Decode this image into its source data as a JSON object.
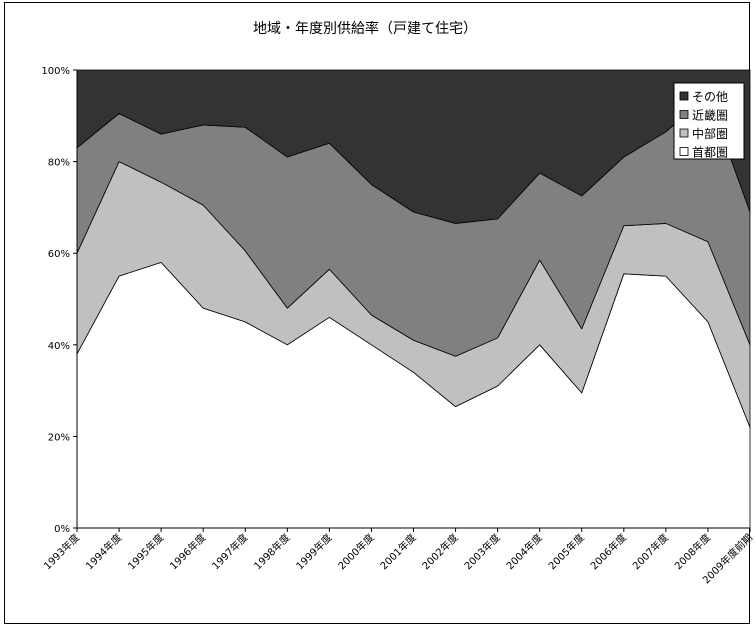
{
  "chart_data": {
    "type": "area",
    "stacked": true,
    "percent": true,
    "title": "地域・年度別供給率（戸建て住宅）",
    "xlabel": "",
    "ylabel": "",
    "ylim": [
      0,
      100
    ],
    "yticks": [
      "0%",
      "20%",
      "40%",
      "60%",
      "80%",
      "100%"
    ],
    "categories": [
      "1993年度",
      "1994年度",
      "1995年度",
      "1996年度",
      "1997年度",
      "1998年度",
      "1999年度",
      "2000年度",
      "2001年度",
      "2002年度",
      "2003年度",
      "2004年度",
      "2005年度",
      "2006年度",
      "2007年度",
      "2008年度",
      "2009年度前期"
    ],
    "legend_position": "top-right",
    "series": [
      {
        "name": "首都圏",
        "color": "#ffffff",
        "values": [
          38,
          55,
          58,
          48,
          45,
          40,
          46,
          40,
          34,
          26.5,
          31,
          40,
          29.5,
          55.5,
          55,
          45,
          22
        ]
      },
      {
        "name": "中部圏",
        "color": "#c0c0c0",
        "values": [
          22,
          25,
          17.5,
          22.5,
          15.5,
          8,
          10.5,
          6.5,
          7,
          11,
          10.5,
          18.5,
          14,
          10.5,
          11.5,
          17.5,
          18
        ]
      },
      {
        "name": "近畿圏",
        "color": "#808080",
        "values": [
          23,
          10.5,
          10.5,
          17.5,
          27,
          33,
          27.5,
          28.5,
          28,
          29,
          26,
          19,
          29,
          15,
          20,
          32,
          29
        ]
      },
      {
        "name": "その他",
        "color": "#333333",
        "values": [
          17,
          9.5,
          14,
          12,
          12.5,
          19,
          16,
          25,
          31,
          33.5,
          32.5,
          22.5,
          27.5,
          19,
          13.5,
          5.5,
          31
        ]
      }
    ]
  }
}
